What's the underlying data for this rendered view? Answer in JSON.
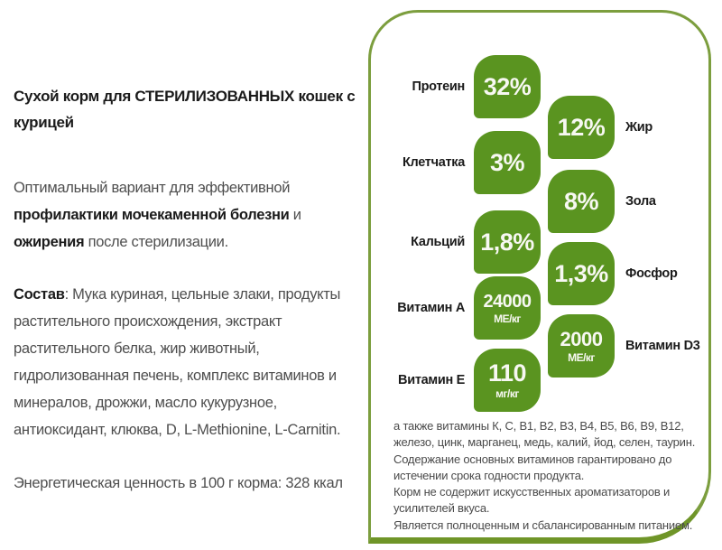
{
  "colors": {
    "badge_green": "#5a9420",
    "panel_border": "#7c9e3e",
    "panel_bottom_bar": "#6f9528",
    "text_dark": "#1b1b1b",
    "text_body": "#4e4e4e"
  },
  "left": {
    "title": "Сухой корм для СТЕРИЛИЗОВАННЫХ кошек с курицей",
    "intro": {
      "normal1": "Оптимальный вариант для эффективной ",
      "bold1": "профилактики мочекаменной болезни",
      "normal2": " и ",
      "bold2": "ожирения",
      "normal3": " после стерилизации."
    },
    "composition": {
      "lead": "Состав",
      "text": ": Мука куриная, цельные злаки, продукты растительного происхождения, экстракт растительного белка, жир животный, гидролизованная печень, комплекс витаминов и минералов, дрожжи, масло кукурузное, антиоксидант, клюква, D, L-Methionine, L-Carnitin."
    },
    "energy": "Энергетическая ценность в 100 г корма: 328 ккал"
  },
  "panel": {
    "nutrients": [
      {
        "label": "Протеин",
        "value": "32%",
        "unit": ""
      },
      {
        "label": "Жир",
        "value": "12%",
        "unit": ""
      },
      {
        "label": "Клетчатка",
        "value": "3%",
        "unit": ""
      },
      {
        "label": "Зола",
        "value": "8%",
        "unit": ""
      },
      {
        "label": "Кальций",
        "value": "1,8%",
        "unit": ""
      },
      {
        "label": "Фосфор",
        "value": "1,3%",
        "unit": ""
      },
      {
        "label": "Витамин А",
        "value": "24000",
        "unit": "МЕ/кг"
      },
      {
        "label": "Витамин D3",
        "value": "2000",
        "unit": "МЕ/кг"
      },
      {
        "label": "Витамин Е",
        "value": "110",
        "unit": "мг/кг"
      }
    ],
    "note1": "а также витамины К, С, В1, В2, В3, В4, В5, В6, В9, В12, железо, цинк, марганец, медь, калий, йод, селен, таурин. Содержание основных витаминов гарантировано до истечении срока годности продукта.",
    "note2": "Корм не содержит искусственных ароматизаторов и усилителей вкуса.",
    "note3": "Является полноценным и сбалансированным питанием."
  }
}
